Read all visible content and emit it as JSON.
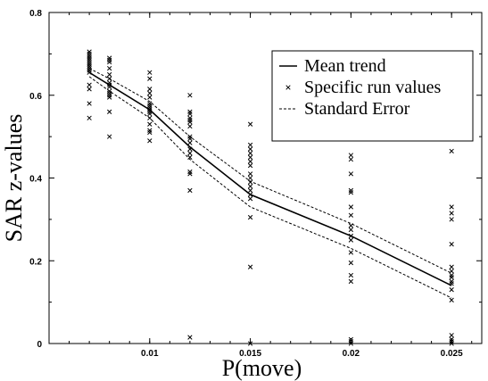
{
  "chart_data": {
    "type": "line",
    "title": "",
    "xlabel": "P(move)",
    "ylabel": "SAR z-values",
    "xlim": [
      0.005,
      0.0265
    ],
    "ylim": [
      0,
      0.8
    ],
    "x_ticks": [
      {
        "value": 0.01,
        "label": "0.01"
      },
      {
        "value": 0.015,
        "label": "0.015"
      },
      {
        "value": 0.02,
        "label": "0.02"
      },
      {
        "value": 0.025,
        "label": "0.025"
      }
    ],
    "y_ticks": [
      {
        "value": 0,
        "label": "0"
      },
      {
        "value": 0.2,
        "label": "0.2"
      },
      {
        "value": 0.4,
        "label": "0.4"
      },
      {
        "value": 0.6,
        "label": "0.6"
      },
      {
        "value": 0.8,
        "label": "0.8"
      }
    ],
    "grid": false,
    "legend_position": "top-right",
    "series": [
      {
        "name": "Mean trend",
        "style": "solid",
        "x": [
          0.007,
          0.008,
          0.01,
          0.012,
          0.015,
          0.02,
          0.025
        ],
        "y": [
          0.655,
          0.625,
          0.565,
          0.475,
          0.36,
          0.26,
          0.14
        ]
      },
      {
        "name": "Standard Error",
        "style": "dashed",
        "x": [
          0.007,
          0.008,
          0.01,
          0.012,
          0.015,
          0.02,
          0.025
        ],
        "y": [
          0.665,
          0.64,
          0.585,
          0.5,
          0.392,
          0.29,
          0.17
        ],
        "y_lower": [
          0.645,
          0.61,
          0.545,
          0.445,
          0.33,
          0.23,
          0.11
        ]
      },
      {
        "name": "Specific run values",
        "style": "markers",
        "points": [
          [
            0.007,
            0.705
          ],
          [
            0.007,
            0.7
          ],
          [
            0.007,
            0.695
          ],
          [
            0.007,
            0.69
          ],
          [
            0.007,
            0.685
          ],
          [
            0.007,
            0.68
          ],
          [
            0.007,
            0.675
          ],
          [
            0.007,
            0.67
          ],
          [
            0.007,
            0.665
          ],
          [
            0.007,
            0.66
          ],
          [
            0.007,
            0.655
          ],
          [
            0.007,
            0.625
          ],
          [
            0.007,
            0.615
          ],
          [
            0.007,
            0.58
          ],
          [
            0.007,
            0.545
          ],
          [
            0.008,
            0.69
          ],
          [
            0.008,
            0.685
          ],
          [
            0.008,
            0.68
          ],
          [
            0.008,
            0.665
          ],
          [
            0.008,
            0.65
          ],
          [
            0.008,
            0.64
          ],
          [
            0.008,
            0.63
          ],
          [
            0.008,
            0.625
          ],
          [
            0.008,
            0.62
          ],
          [
            0.008,
            0.61
          ],
          [
            0.008,
            0.605
          ],
          [
            0.008,
            0.6
          ],
          [
            0.008,
            0.595
          ],
          [
            0.008,
            0.56
          ],
          [
            0.008,
            0.5
          ],
          [
            0.01,
            0.655
          ],
          [
            0.01,
            0.64
          ],
          [
            0.01,
            0.615
          ],
          [
            0.01,
            0.605
          ],
          [
            0.01,
            0.595
          ],
          [
            0.01,
            0.58
          ],
          [
            0.01,
            0.575
          ],
          [
            0.01,
            0.57
          ],
          [
            0.01,
            0.565
          ],
          [
            0.01,
            0.56
          ],
          [
            0.01,
            0.555
          ],
          [
            0.01,
            0.545
          ],
          [
            0.01,
            0.53
          ],
          [
            0.01,
            0.515
          ],
          [
            0.01,
            0.51
          ],
          [
            0.01,
            0.49
          ],
          [
            0.012,
            0.6
          ],
          [
            0.012,
            0.56
          ],
          [
            0.012,
            0.555
          ],
          [
            0.012,
            0.545
          ],
          [
            0.012,
            0.54
          ],
          [
            0.012,
            0.535
          ],
          [
            0.012,
            0.525
          ],
          [
            0.012,
            0.5
          ],
          [
            0.012,
            0.495
          ],
          [
            0.012,
            0.485
          ],
          [
            0.012,
            0.47
          ],
          [
            0.012,
            0.46
          ],
          [
            0.012,
            0.45
          ],
          [
            0.012,
            0.415
          ],
          [
            0.012,
            0.41
          ],
          [
            0.012,
            0.37
          ],
          [
            0.012,
            0.015
          ],
          [
            0.015,
            0.53
          ],
          [
            0.015,
            0.48
          ],
          [
            0.015,
            0.47
          ],
          [
            0.015,
            0.46
          ],
          [
            0.015,
            0.45
          ],
          [
            0.015,
            0.44
          ],
          [
            0.015,
            0.43
          ],
          [
            0.015,
            0.41
          ],
          [
            0.015,
            0.4
          ],
          [
            0.015,
            0.39
          ],
          [
            0.015,
            0.38
          ],
          [
            0.015,
            0.37
          ],
          [
            0.015,
            0.36
          ],
          [
            0.015,
            0.35
          ],
          [
            0.015,
            0.305
          ],
          [
            0.015,
            0.185
          ],
          [
            0.015,
            0.0
          ],
          [
            0.02,
            0.455
          ],
          [
            0.02,
            0.445
          ],
          [
            0.02,
            0.41
          ],
          [
            0.02,
            0.37
          ],
          [
            0.02,
            0.365
          ],
          [
            0.02,
            0.33
          ],
          [
            0.02,
            0.31
          ],
          [
            0.02,
            0.285
          ],
          [
            0.02,
            0.275
          ],
          [
            0.02,
            0.26
          ],
          [
            0.02,
            0.25
          ],
          [
            0.02,
            0.22
          ],
          [
            0.02,
            0.195
          ],
          [
            0.02,
            0.165
          ],
          [
            0.02,
            0.15
          ],
          [
            0.02,
            0.01
          ],
          [
            0.02,
            0.005
          ],
          [
            0.02,
            0.0
          ],
          [
            0.025,
            0.465
          ],
          [
            0.025,
            0.33
          ],
          [
            0.025,
            0.315
          ],
          [
            0.025,
            0.3
          ],
          [
            0.025,
            0.24
          ],
          [
            0.025,
            0.185
          ],
          [
            0.025,
            0.175
          ],
          [
            0.025,
            0.165
          ],
          [
            0.025,
            0.16
          ],
          [
            0.025,
            0.15
          ],
          [
            0.025,
            0.145
          ],
          [
            0.025,
            0.13
          ],
          [
            0.025,
            0.105
          ],
          [
            0.025,
            0.02
          ],
          [
            0.025,
            0.01
          ],
          [
            0.025,
            0.005
          ],
          [
            0.025,
            0.0
          ]
        ]
      }
    ]
  }
}
